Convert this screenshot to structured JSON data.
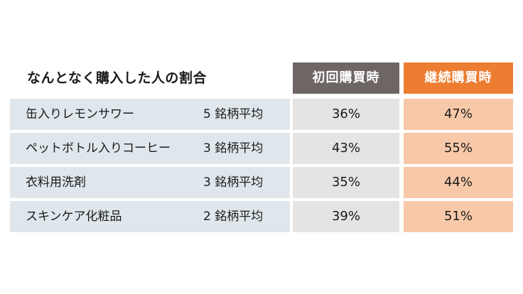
{
  "chart_data": {
    "type": "table",
    "title": "なんとなく購入した人の割合",
    "columns": [
      "初回購買時",
      "継続購買時"
    ],
    "colors": {
      "header_first": "#6d6665",
      "header_continued": "#ed7d31"
    },
    "rows": [
      {
        "category": "缶入りレモンサワー",
        "note": "5 銘柄平均",
        "values": [
          "36%",
          "47%"
        ]
      },
      {
        "category": "ペットボトル入りコーヒー",
        "note": "3 銘柄平均",
        "values": [
          "43%",
          "55%"
        ]
      },
      {
        "category": "衣料用洗剤",
        "note": "3 銘柄平均",
        "values": [
          "35%",
          "44%"
        ]
      },
      {
        "category": "スキンケア化粧品",
        "note": "2 銘柄平均",
        "values": [
          "39%",
          "51%"
        ]
      }
    ]
  }
}
